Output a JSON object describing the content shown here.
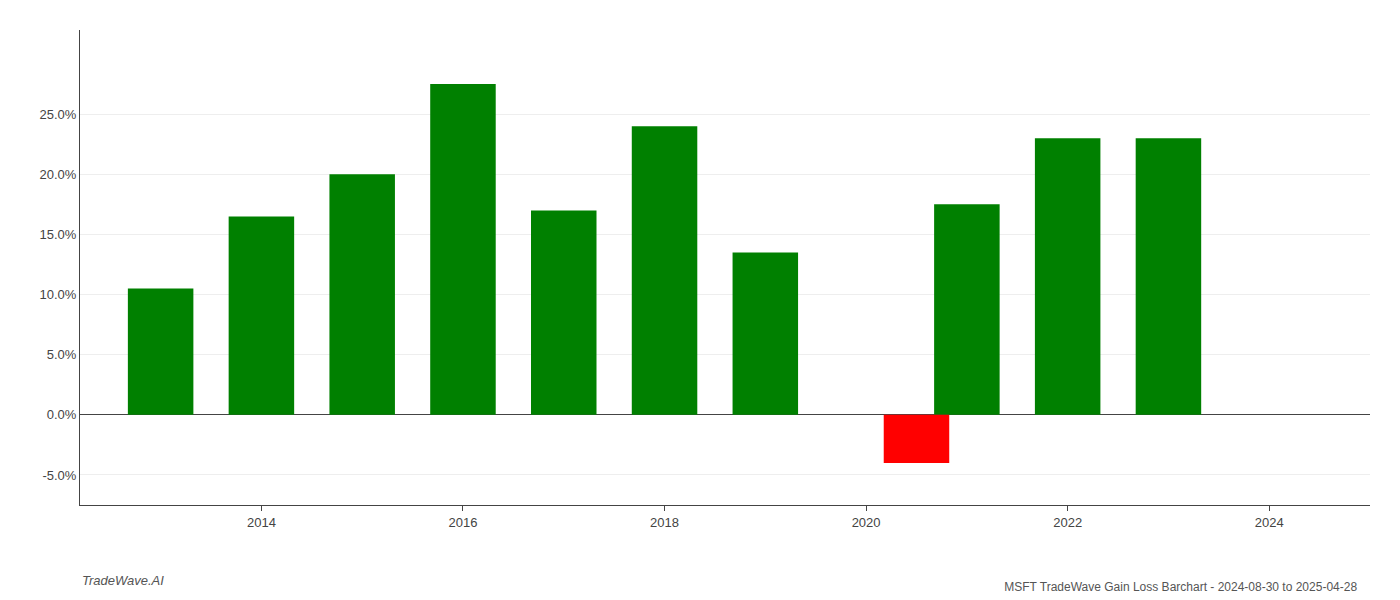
{
  "chart_data": {
    "type": "bar",
    "title": "MSFT TradeWave Gain Loss Barchart - 2024-08-30 to 2025-04-28",
    "annotations": [
      "TradeWave.AI"
    ],
    "x": [
      2013,
      2014,
      2015,
      2016,
      2017,
      2018,
      2019,
      2021,
      2022,
      2023,
      2020.5
    ],
    "values": [
      0.105,
      0.165,
      0.2,
      0.275,
      0.17,
      0.24,
      0.135,
      0.175,
      0.23,
      0.23,
      -0.04
    ],
    "colors": [
      "#008000",
      "#008000",
      "#008000",
      "#008000",
      "#008000",
      "#008000",
      "#008000",
      "#008000",
      "#008000",
      "#008000",
      "#ff0000"
    ],
    "xlim": [
      2012.2,
      2025.0
    ],
    "xticks": [
      2014,
      2016,
      2018,
      2020,
      2022,
      2024
    ],
    "ylim": [
      -0.075,
      0.32
    ],
    "yticks": [
      {
        "value": -0.05,
        "label": "-5.0%"
      },
      {
        "value": 0.0,
        "label": "0.0%"
      },
      {
        "value": 0.05,
        "label": "5.0%"
      },
      {
        "value": 0.1,
        "label": "10.0%"
      },
      {
        "value": 0.15,
        "label": "15.0%"
      },
      {
        "value": 0.2,
        "label": "20.0%"
      },
      {
        "value": 0.25,
        "label": "25.0%"
      }
    ],
    "grid": true
  }
}
